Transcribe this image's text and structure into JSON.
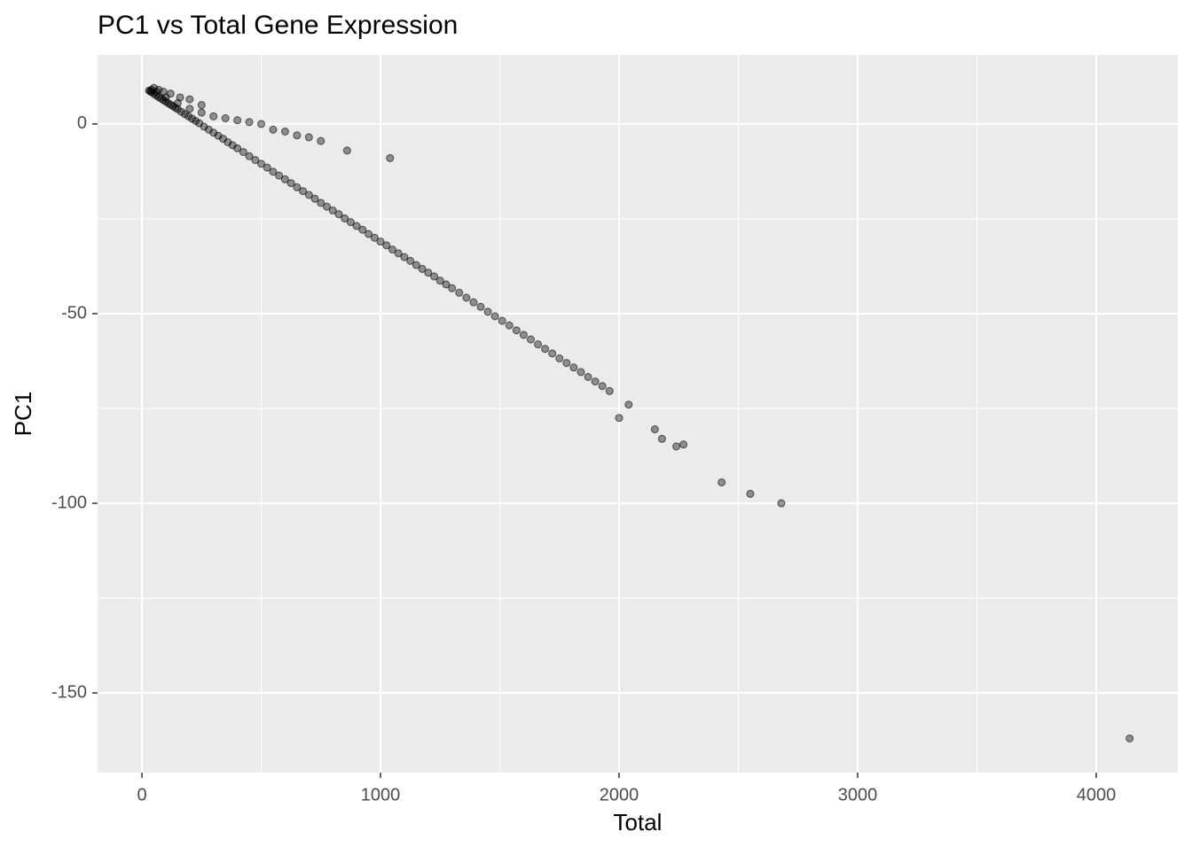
{
  "chart_data": {
    "type": "scatter",
    "title": "PC1 vs Total Gene Expression",
    "x_label": "Total",
    "y_label": "PC1",
    "xlim": [
      -186,
      4342
    ],
    "ylim": [
      -171,
      18.2
    ],
    "xticks": [
      0,
      1000,
      2000,
      3000,
      4000
    ],
    "yticks": [
      0,
      -50,
      -100,
      -150
    ],
    "xminorticks": [
      500,
      1500,
      2500,
      3500
    ],
    "yminorticks": [
      -25,
      -75,
      -125
    ],
    "grid": true,
    "panel_color": "#ebebeb",
    "grid_color": "#ffffff",
    "point_alpha": 0.4,
    "series": [
      {
        "color": "#000000",
        "x": [
          30,
          35,
          40,
          50,
          60,
          70,
          80,
          90,
          100,
          110,
          120,
          130,
          140,
          150,
          165,
          180,
          195,
          210,
          225,
          240,
          260,
          280,
          300,
          320,
          340,
          360,
          380,
          400,
          425,
          450,
          475,
          500,
          525,
          550,
          575,
          600,
          625,
          650,
          675,
          700,
          725,
          750,
          775,
          800,
          825,
          850,
          875,
          900,
          925,
          950,
          975,
          1000,
          1025,
          1050,
          1075,
          1100,
          1125,
          1150,
          1175,
          1200,
          1225,
          1250,
          1275,
          1300,
          1330,
          1360,
          1390,
          1420,
          1450,
          1480,
          1510,
          1540,
          1570,
          1600,
          1630,
          1660,
          1690,
          1720,
          1750,
          1780,
          1810,
          1840,
          1870,
          1900,
          1930,
          1960,
          2000,
          2040,
          2150,
          2180,
          2240,
          2270,
          2430,
          2550,
          2680,
          4140,
          60,
          100,
          150,
          200,
          250,
          300,
          350,
          400,
          450,
          500,
          550,
          600,
          650,
          700,
          750,
          860,
          1040,
          40,
          50,
          70,
          90,
          120,
          160,
          200,
          250
        ],
        "y": [
          8.8,
          8.6,
          8.4,
          8.0,
          7.5,
          7.1,
          6.7,
          6.3,
          5.9,
          5.5,
          5.1,
          4.7,
          4.3,
          3.9,
          3.2,
          2.6,
          2.0,
          1.4,
          0.8,
          0.2,
          -0.7,
          -1.5,
          -2.3,
          -3.1,
          -3.9,
          -4.8,
          -5.6,
          -6.4,
          -7.4,
          -8.5,
          -9.5,
          -10.5,
          -11.5,
          -12.6,
          -13.6,
          -14.6,
          -15.6,
          -16.7,
          -17.7,
          -18.7,
          -19.7,
          -20.8,
          -21.8,
          -22.8,
          -23.8,
          -24.9,
          -25.9,
          -26.9,
          -27.9,
          -29.0,
          -30.0,
          -31.0,
          -32.0,
          -33.1,
          -34.1,
          -35.1,
          -36.1,
          -37.2,
          -38.2,
          -39.2,
          -40.2,
          -41.3,
          -42.3,
          -43.3,
          -44.5,
          -45.8,
          -47.0,
          -48.2,
          -49.5,
          -50.7,
          -51.9,
          -53.1,
          -54.4,
          -55.6,
          -56.8,
          -58.1,
          -59.3,
          -60.5,
          -61.8,
          -63.0,
          -64.2,
          -65.4,
          -66.7,
          -67.9,
          -69.1,
          -70.4,
          -77.5,
          -74,
          -80.5,
          -83,
          -85,
          -84.5,
          -94.5,
          -97.5,
          -100,
          -162,
          8.5,
          7,
          5.5,
          4,
          3,
          2,
          1.5,
          1,
          0.5,
          0,
          -1.5,
          -2,
          -3,
          -3.5,
          -4.5,
          -7,
          -9,
          9,
          9.5,
          9,
          8.5,
          8,
          7,
          6.5,
          5
        ]
      }
    ]
  }
}
